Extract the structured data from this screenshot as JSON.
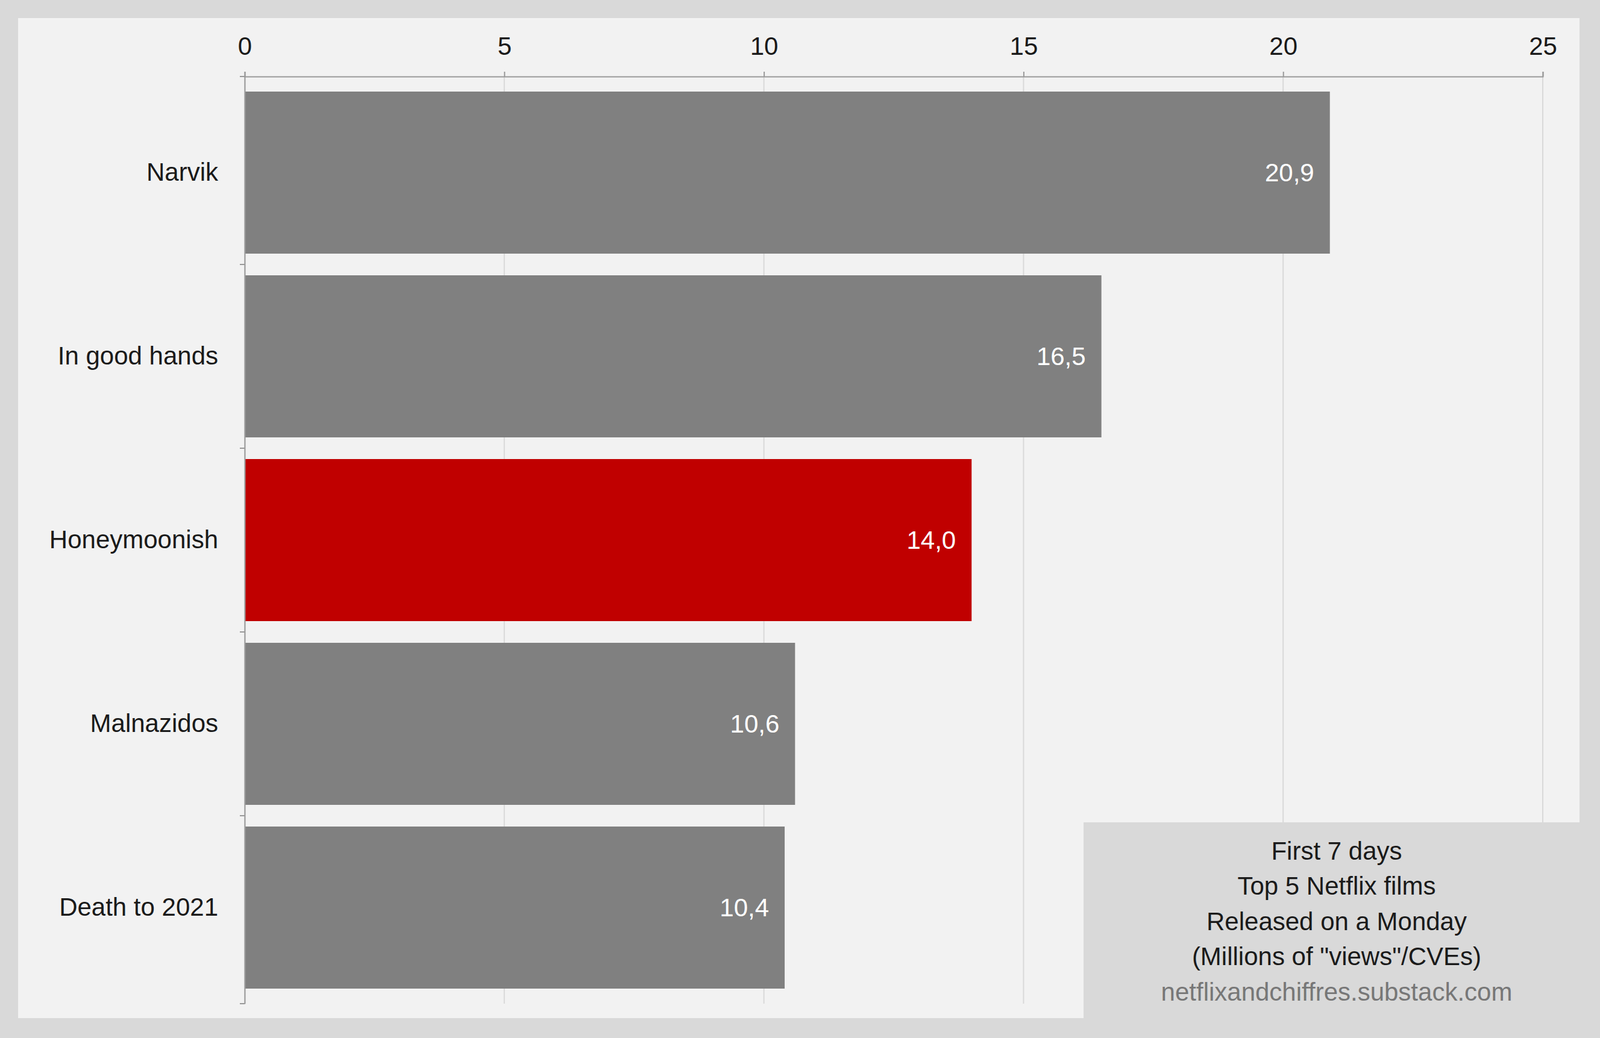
{
  "chart_data": {
    "type": "bar",
    "orientation": "horizontal",
    "title": "First 7 days",
    "annotations": [
      "Top 5 Netflix films",
      "Released on a Monday",
      "(Millions of \"views\"/CVEs)"
    ],
    "source": "netflixandchiffres.substack.com",
    "categories": [
      "Narvik",
      "In good hands",
      "Honeymoonish",
      "Malnazidos",
      "Death to 2021"
    ],
    "values": [
      20.9,
      16.5,
      14.0,
      10.6,
      10.4
    ],
    "value_labels": [
      "20,9",
      "16,5",
      "14,0",
      "10,6",
      "10,4"
    ],
    "colors": [
      "#808080",
      "#808080",
      "#c00000",
      "#808080",
      "#808080"
    ],
    "xlim": [
      0,
      25
    ],
    "xticks": [
      0,
      5,
      10,
      15,
      20,
      25
    ],
    "grid": true,
    "data_labels": true
  }
}
